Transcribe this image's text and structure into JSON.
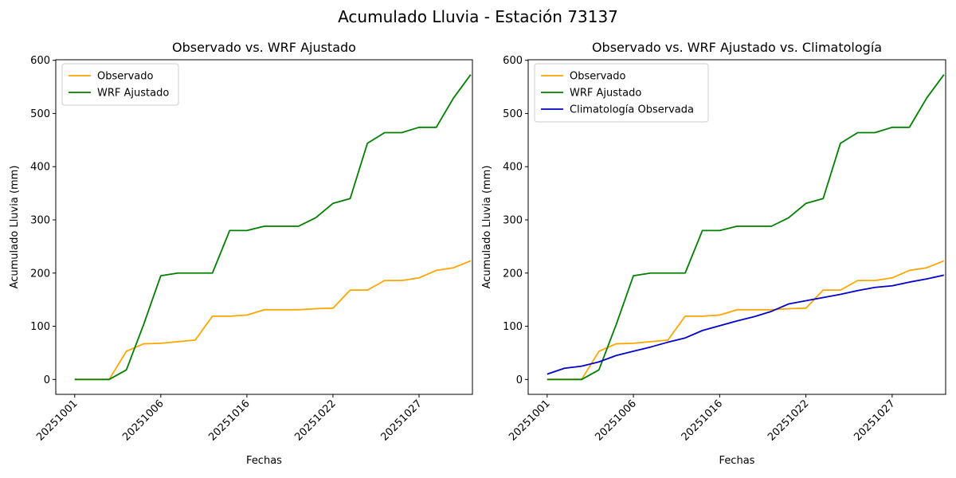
{
  "figure": {
    "title": "Acumulado Lluvia - Estación 73137"
  },
  "colors": {
    "observado": "#ffa500",
    "wrf": "#008000",
    "climatologia": "#0000cd"
  },
  "chart_data": [
    {
      "type": "line",
      "title": "Observado vs. WRF Ajustado",
      "xlabel": "Fechas",
      "ylabel": "Acumulado Lluvia (mm)",
      "x_tick_labels": [
        "20251001",
        "20251006",
        "20251016",
        "20251022",
        "20251027"
      ],
      "x_tick_index": [
        0,
        5,
        10,
        15,
        20
      ],
      "x_index_range": [
        -1.1,
        23.1
      ],
      "ylim": [
        -28,
        601
      ],
      "y_ticks": [
        0,
        100,
        200,
        300,
        400,
        500,
        600
      ],
      "legend": "top-left",
      "grid": false,
      "series": [
        {
          "name": "Observado",
          "color_key": "observado",
          "values": [
            0,
            0,
            0,
            53,
            67,
            68,
            71,
            74,
            119,
            119,
            121,
            131,
            131,
            131,
            133,
            134,
            168,
            168,
            186,
            186,
            191,
            205,
            210,
            223
          ]
        },
        {
          "name": "WRF Ajustado",
          "color_key": "wrf",
          "values": [
            0,
            0,
            0,
            18,
            103,
            195,
            200,
            200,
            200,
            280,
            280,
            288,
            288,
            288,
            304,
            331,
            340,
            444,
            464,
            464,
            474,
            474,
            529,
            573
          ]
        }
      ]
    },
    {
      "type": "line",
      "title": "Observado vs. WRF Ajustado vs. Climatología",
      "xlabel": "Fechas",
      "ylabel": "Acumulado Lluvia (mm)",
      "x_tick_labels": [
        "20251001",
        "20251006",
        "20251016",
        "20251022",
        "20251027"
      ],
      "x_tick_index": [
        0,
        5,
        10,
        15,
        20
      ],
      "x_index_range": [
        -1.1,
        23.1
      ],
      "ylim": [
        -28,
        601
      ],
      "y_ticks": [
        0,
        100,
        200,
        300,
        400,
        500,
        600
      ],
      "legend": "top-left",
      "grid": false,
      "series": [
        {
          "name": "Observado",
          "color_key": "observado",
          "values": [
            0,
            0,
            0,
            53,
            67,
            68,
            71,
            74,
            119,
            119,
            121,
            131,
            131,
            131,
            133,
            134,
            168,
            168,
            186,
            186,
            191,
            205,
            210,
            223
          ]
        },
        {
          "name": "WRF Ajustado",
          "color_key": "wrf",
          "values": [
            0,
            0,
            0,
            18,
            103,
            195,
            200,
            200,
            200,
            280,
            280,
            288,
            288,
            288,
            304,
            331,
            340,
            444,
            464,
            464,
            474,
            474,
            529,
            573
          ]
        },
        {
          "name": "Climatología Observada",
          "color_key": "climatologia",
          "values": [
            10,
            21,
            25,
            33,
            45,
            53,
            61,
            70,
            78,
            92,
            101,
            110,
            118,
            128,
            142,
            148,
            154,
            160,
            167,
            173,
            176,
            183,
            189,
            196
          ]
        }
      ]
    }
  ]
}
